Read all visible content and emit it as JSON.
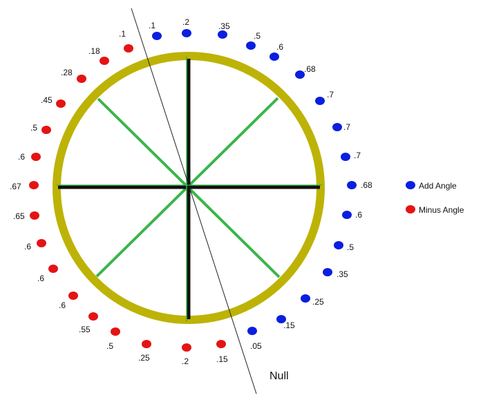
{
  "colors": {
    "ring": "#bdb306",
    "spoke_green": "#3ab54a",
    "spoke_dark": "#111111",
    "add": "#0a1fe0",
    "minus": "#e41414",
    "null_line": "#222222"
  },
  "add_points": [
    {
      "label": ".1"
    },
    {
      "label": ".2"
    },
    {
      "label": ".35"
    },
    {
      "label": ".5"
    },
    {
      "label": ".6"
    },
    {
      "label": ".68"
    },
    {
      "label": ".7"
    },
    {
      "label": ".7"
    },
    {
      "label": ".7"
    },
    {
      "label": ".68"
    },
    {
      "label": ".6"
    },
    {
      "label": ".5"
    },
    {
      "label": ".35"
    },
    {
      "label": ".25"
    },
    {
      "label": ".15"
    },
    {
      "label": ".05"
    }
  ],
  "minus_points": [
    {
      "label": ".1"
    },
    {
      "label": ".18"
    },
    {
      "label": ".28"
    },
    {
      "label": ".45"
    },
    {
      "label": ".5"
    },
    {
      "label": ".6"
    },
    {
      "label": ".67"
    },
    {
      "label": ".65"
    },
    {
      "label": ".6"
    },
    {
      "label": ".6"
    },
    {
      "label": ".6"
    },
    {
      "label": ".55"
    },
    {
      "label": ".5"
    },
    {
      "label": ".25"
    },
    {
      "label": ".2"
    },
    {
      "label": ".15"
    }
  ],
  "legend": {
    "add_label": "Add Angle",
    "minus_label": "Minus Angle",
    "add_icon": "blue-dot",
    "minus_icon": "red-dot"
  },
  "null_label": "Null"
}
